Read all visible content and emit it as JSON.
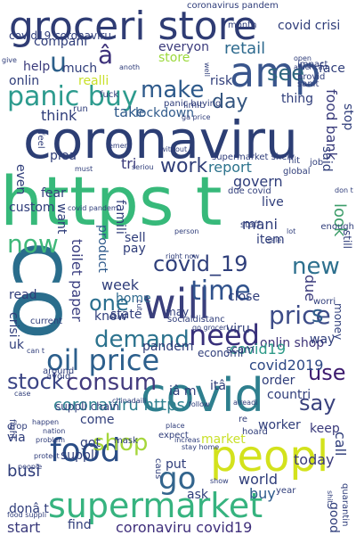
{
  "words": [
    {
      "text": "groceri store",
      "color": "#2f3c74"
    },
    {
      "text": "amp",
      "color": "#39558c"
    },
    {
      "text": "coronaviru",
      "color": "#2c3e74"
    },
    {
      "text": "https t",
      "color": "#37b97a"
    },
    {
      "text": "co",
      "color": "#2a6d8c"
    },
    {
      "text": "covid",
      "color": "#2e7f8e"
    },
    {
      "text": "panic buy",
      "color": "#2d9b8e"
    },
    {
      "text": "peopl",
      "color": "#d3e21c"
    },
    {
      "text": "supermarket",
      "color": "#36b37f"
    },
    {
      "text": "food",
      "color": "#2a4d86"
    },
    {
      "text": "will",
      "color": "#3a3f7c"
    },
    {
      "text": "go",
      "color": "#33658d"
    },
    {
      "text": "covid_19",
      "color": "#2f3f7b"
    },
    {
      "text": "oil price",
      "color": "#2c5f8c"
    },
    {
      "text": "time",
      "color": "#30528c"
    },
    {
      "text": "consum",
      "color": "#433b7e"
    },
    {
      "text": "need",
      "color": "#38307a"
    },
    {
      "text": "price",
      "color": "#3d4c88"
    },
    {
      "text": "demand",
      "color": "#2c738e"
    },
    {
      "text": "now",
      "color": "#40b87a"
    },
    {
      "text": "make",
      "color": "#2e5a8b"
    },
    {
      "text": "work",
      "color": "#2f3e78"
    },
    {
      "text": "new",
      "color": "#2d708e"
    },
    {
      "text": "one",
      "color": "#2a6f8f"
    },
    {
      "text": "shop",
      "color": "#a5d63a"
    },
    {
      "text": "stock",
      "color": "#3b4585"
    },
    {
      "text": "say",
      "color": "#3a427e"
    },
    {
      "text": "use",
      "color": "#3d1b6e"
    },
    {
      "text": "see",
      "color": "#2f667f"
    },
    {
      "text": "u",
      "color": "#2c5f8a"
    },
    {
      "text": "â",
      "color": "#3d317a"
    },
    {
      "text": "day",
      "color": "#32547f"
    },
    {
      "text": "coronaviru https",
      "color": "#2c7f8e"
    },
    {
      "text": "coronaviru covid19",
      "color": "#3f2f7b"
    },
    {
      "text": "onlin shop",
      "color": "#3f3579"
    },
    {
      "text": "toilet paper",
      "color": "#3c4081"
    },
    {
      "text": "covid19",
      "color": "#2d9a88"
    },
    {
      "text": "s",
      "color": "#2f5d8b"
    },
    {
      "text": "look",
      "color": "#3d9d6a"
    },
    {
      "text": "retail",
      "color": "#2d6a8e"
    },
    {
      "text": "report",
      "color": "#2c738c"
    },
    {
      "text": "food bank",
      "color": "#3a3c7c"
    },
    {
      "text": "lockdown",
      "color": "#2f5a8b"
    },
    {
      "text": "market",
      "color": "#c9e02a"
    },
    {
      "text": "today",
      "color": "#3a3a7b"
    },
    {
      "text": "keep",
      "color": "#3a3a7b"
    },
    {
      "text": "week",
      "color": "#2f3d7a"
    },
    {
      "text": "home",
      "color": "#2f6a8e"
    },
    {
      "text": "buy",
      "color": "#2d5a8b"
    },
    {
      "text": "busi",
      "color": "#2f3d7a"
    },
    {
      "text": "start",
      "color": "#3a3a7b"
    },
    {
      "text": "call",
      "color": "#2f3d7a"
    },
    {
      "text": "world",
      "color": "#2f3d7a"
    },
    {
      "text": "covid2019",
      "color": "#2f4a86"
    },
    {
      "text": "product",
      "color": "#2f5a8b"
    },
    {
      "text": "govern",
      "color": "#2f3d7a"
    },
    {
      "text": "due",
      "color": "#3a3a7b"
    },
    {
      "text": "take",
      "color": "#2f5a8b"
    },
    {
      "text": "think",
      "color": "#2f3d7a"
    },
    {
      "text": "help",
      "color": "#3a3a7b"
    },
    {
      "text": "much",
      "color": "#2f3d7a"
    },
    {
      "text": "compani",
      "color": "#2f3d7a"
    },
    {
      "text": "everyon",
      "color": "#3a3a7b"
    },
    {
      "text": "store",
      "color": "#9bd93c"
    },
    {
      "text": "face",
      "color": "#2f3d7a"
    },
    {
      "text": "onlin",
      "color": "#2f3d7a"
    },
    {
      "text": "realli",
      "color": "#c9e02a"
    },
    {
      "text": "thing",
      "color": "#2f3d7a"
    },
    {
      "text": "stop",
      "color": "#2f3d7a"
    },
    {
      "text": "said",
      "color": "#2f3d7a"
    },
    {
      "text": "even",
      "color": "#2f3d7a"
    },
    {
      "text": "tri",
      "color": "#3a3a7b"
    },
    {
      "text": "mani",
      "color": "#2f3d7a"
    },
    {
      "text": "want",
      "color": "#2f3d7a"
    },
    {
      "text": "plea",
      "color": "#2f3d7a"
    },
    {
      "text": "fear",
      "color": "#2f3d7a"
    },
    {
      "text": "custom",
      "color": "#2f3d7a"
    },
    {
      "text": "sell",
      "color": "#2f3d7a"
    },
    {
      "text": "pay",
      "color": "#2f3d7a"
    },
    {
      "text": "item",
      "color": "#2f3d7a"
    },
    {
      "text": "live",
      "color": "#2f3d7a"
    },
    {
      "text": "read",
      "color": "#2f3d7a"
    },
    {
      "text": "crisi",
      "color": "#2f3d7a"
    },
    {
      "text": "state",
      "color": "#2f3d7a"
    },
    {
      "text": "know",
      "color": "#2f3d7a"
    },
    {
      "text": "may",
      "color": "#2f3d7a"
    },
    {
      "text": "close",
      "color": "#2f3d7a"
    },
    {
      "text": "viru",
      "color": "#2f3d7a"
    },
    {
      "text": "scam",
      "color": "#2f3d7a"
    },
    {
      "text": "way",
      "color": "#2f3d7a"
    },
    {
      "text": "money",
      "color": "#2f3d7a"
    },
    {
      "text": "uk",
      "color": "#2f3d7a"
    },
    {
      "text": "pandem",
      "color": "#2f3d7a"
    },
    {
      "text": "economi",
      "color": "#2f3d7a"
    },
    {
      "text": "worri",
      "color": "#2f3d7a"
    },
    {
      "text": "order",
      "color": "#2f3d7a"
    },
    {
      "text": "countri",
      "color": "#2f3d7a"
    },
    {
      "text": "suppli chain",
      "color": "#2f3d7a"
    },
    {
      "text": "come",
      "color": "#2f3d7a"
    },
    {
      "text": "got",
      "color": "#2f3d7a"
    },
    {
      "text": "suppli",
      "color": "#2f3d7a"
    },
    {
      "text": "put",
      "color": "#2f3d7a"
    },
    {
      "text": "worker",
      "color": "#2f3d7a"
    },
    {
      "text": "ask",
      "color": "#2f3d7a"
    },
    {
      "text": "good",
      "color": "#2f3d7a"
    },
    {
      "text": "find",
      "color": "#2f3d7a"
    },
    {
      "text": "covid crisi",
      "color": "#2f3d7a"
    },
    {
      "text": "risk",
      "color": "#2f3d7a"
    },
    {
      "text": "covid19 coronaviru",
      "color": "#2f3d7a"
    },
    {
      "text": "fuck",
      "color": "#2f3d7a"
    },
    {
      "text": "run",
      "color": "#2f3d7a"
    },
    {
      "text": "limit",
      "color": "#2f3d7a"
    },
    {
      "text": "due covid",
      "color": "#2f3d7a"
    },
    {
      "text": "socialdistanc",
      "color": "#2f3d7a"
    },
    {
      "text": "go groceri",
      "color": "#2f3d7a"
    },
    {
      "text": "donâ t",
      "color": "#2f3d7a"
    },
    {
      "text": "itâ",
      "color": "#2f3d7a"
    },
    {
      "text": "iâ m",
      "color": "#2f3d7a"
    },
    {
      "text": "stay home",
      "color": "#2f3d7a"
    },
    {
      "text": "mask",
      "color": "#2f3d7a"
    },
    {
      "text": "expect",
      "color": "#2f3d7a"
    },
    {
      "text": "place",
      "color": "#2f3d7a"
    },
    {
      "text": "via",
      "color": "#2f3d7a"
    },
    {
      "text": "drop",
      "color": "#2f3d7a"
    },
    {
      "text": "current",
      "color": "#2f3d7a"
    },
    {
      "text": "fight",
      "color": "#2f3d7a"
    },
    {
      "text": "avoid",
      "color": "#2f3d7a"
    },
    {
      "text": "year",
      "color": "#2f3d7a"
    },
    {
      "text": "quarantin",
      "color": "#2f3d7a"
    },
    {
      "text": "month",
      "color": "#2f3d7a"
    },
    {
      "text": "sanit",
      "color": "#2f3d7a"
    },
    {
      "text": "provid",
      "color": "#2f3d7a"
    },
    {
      "text": "impact",
      "color": "#2f3d7a"
    },
    {
      "text": "american",
      "color": "#2f3d7a"
    },
    {
      "text": "open",
      "color": "#2f3d7a"
    },
    {
      "text": "ga price",
      "color": "#2f3d7a"
    },
    {
      "text": "panic buying",
      "color": "#2f3d7a"
    },
    {
      "text": "supermarket shelv",
      "color": "#2f3d7a"
    },
    {
      "text": "coronavirus pandem",
      "color": "#2f3d7a"
    },
    {
      "text": "global",
      "color": "#2f3d7a"
    },
    {
      "text": "staff",
      "color": "#2f3d7a"
    },
    {
      "text": "person",
      "color": "#2f3d7a"
    },
    {
      "text": "right now",
      "color": "#2f3d7a"
    },
    {
      "text": "sale",
      "color": "#2f3d7a"
    },
    {
      "text": "lot",
      "color": "#2f3d7a"
    },
    {
      "text": "still",
      "color": "#2f3d7a"
    },
    {
      "text": "enough",
      "color": "#2f3d7a"
    },
    {
      "text": "don t",
      "color": "#2f3d7a"
    },
    {
      "text": "job",
      "color": "#2f3d7a"
    },
    {
      "text": "hit",
      "color": "#2f3d7a"
    },
    {
      "text": "seriou",
      "color": "#2f3d7a"
    },
    {
      "text": "without",
      "color": "#2f3d7a"
    },
    {
      "text": "emerg",
      "color": "#2f3d7a"
    },
    {
      "text": "feel",
      "color": "#2f3d7a"
    },
    {
      "text": "must",
      "color": "#2f3d7a"
    },
    {
      "text": "give",
      "color": "#2f3d7a"
    },
    {
      "text": "anoth",
      "color": "#2f3d7a"
    },
    {
      "text": "well",
      "color": "#2f3d7a"
    },
    {
      "text": "can t",
      "color": "#2f3d7a"
    },
    {
      "text": "local",
      "color": "#2f3d7a"
    },
    {
      "text": "cut",
      "color": "#2f3d7a"
    },
    {
      "text": "alreadi",
      "color": "#2f3d7a"
    },
    {
      "text": "follow",
      "color": "#2f3d7a"
    },
    {
      "text": "hoard",
      "color": "#2f3d7a"
    },
    {
      "text": "increas",
      "color": "#2f3d7a"
    },
    {
      "text": "caus",
      "color": "#2f3d7a"
    },
    {
      "text": "show",
      "color": "#2f3d7a"
    },
    {
      "text": "protect",
      "color": "#2f3d7a"
    },
    {
      "text": "people",
      "color": "#2f3d7a"
    },
    {
      "text": "problem",
      "color": "#2f3d7a"
    },
    {
      "text": "nation",
      "color": "#2f3d7a"
    },
    {
      "text": "happen",
      "color": "#2f3d7a"
    },
    {
      "text": "food suppli",
      "color": "#2f3d7a"
    },
    {
      "text": "case",
      "color": "#2f3d7a"
    },
    {
      "text": "around",
      "color": "#2f3d7a"
    },
    {
      "text": "chinadaili",
      "color": "#2f3d7a"
    },
    {
      "text": "re",
      "color": "#2f3d7a"
    },
    {
      "text": "shit",
      "color": "#2f3d7a"
    },
    {
      "text": "covid pandem",
      "color": "#2f3d7a"
    },
    {
      "text": "famili",
      "color": "#2f3d7a"
    }
  ]
}
